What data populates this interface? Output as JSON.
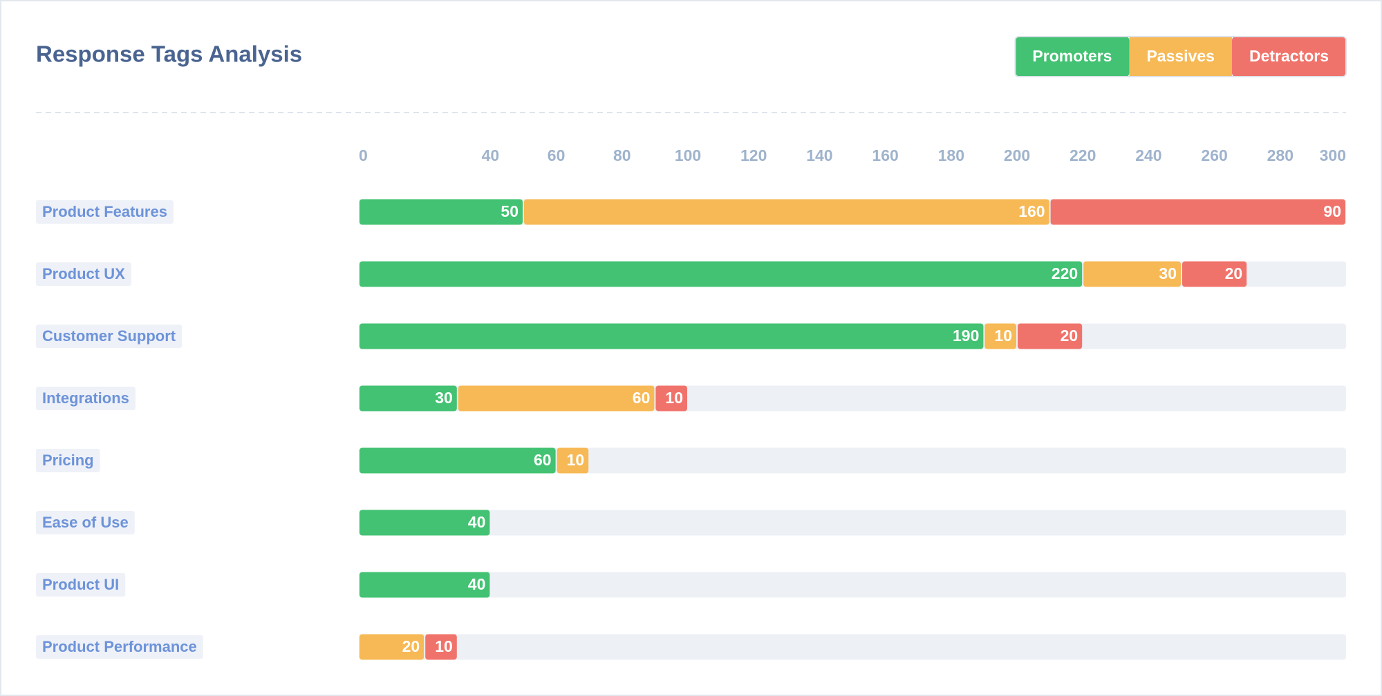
{
  "chart_data": {
    "type": "stacked-bar",
    "orientation": "horizontal",
    "title": "Response Tags Analysis",
    "categories": [
      "Product Features",
      "Product UX",
      "Customer Support",
      "Integrations",
      "Pricing",
      "Ease of Use",
      "Product UI",
      "Product Performance"
    ],
    "series": [
      {
        "name": "Promoters",
        "color": "#42c272",
        "values": [
          50,
          220,
          190,
          30,
          60,
          40,
          40,
          null
        ]
      },
      {
        "name": "Passives",
        "color": "#f7b955",
        "values": [
          160,
          30,
          10,
          60,
          10,
          null,
          null,
          20
        ]
      },
      {
        "name": "Detractors",
        "color": "#f0736b",
        "values": [
          90,
          20,
          20,
          10,
          null,
          null,
          null,
          10
        ]
      }
    ],
    "xlim": [
      0,
      300
    ],
    "xticks": [
      0,
      40,
      60,
      80,
      100,
      120,
      140,
      160,
      180,
      200,
      220,
      240,
      260,
      280,
      300
    ],
    "legend": "top-right"
  }
}
